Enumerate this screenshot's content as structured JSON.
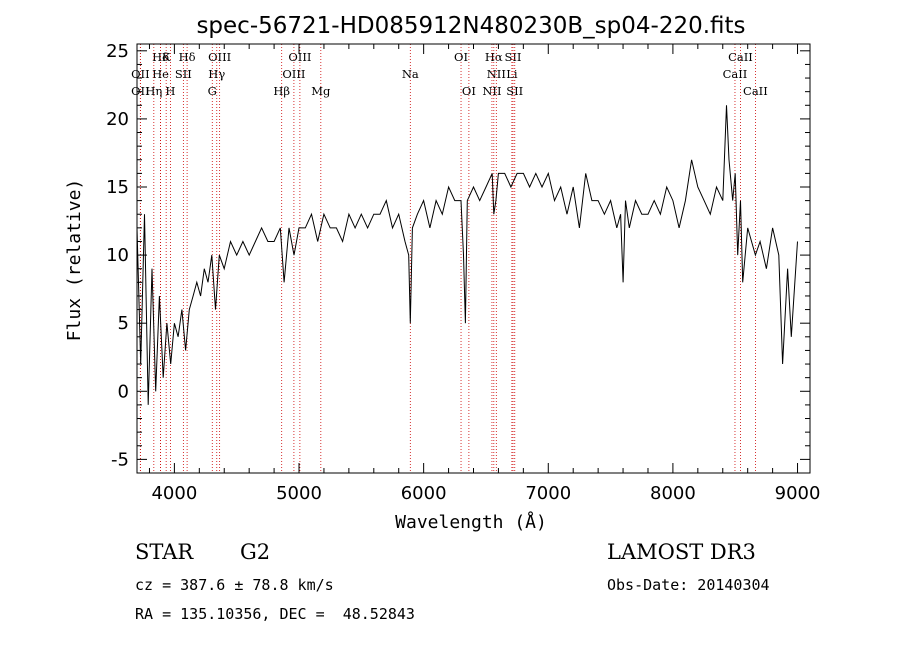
{
  "chart_data": {
    "type": "line",
    "title": "spec-56721-HD085912N480230B_sp04-220.fits",
    "xlabel": "Wavelength (Å)",
    "ylabel": "Flux (relative)",
    "xlim": [
      3700,
      9100
    ],
    "ylim": [
      -6,
      25.5
    ],
    "xticks": [
      4000,
      5000,
      6000,
      7000,
      8000,
      9000
    ],
    "yticks": [
      -5,
      0,
      5,
      10,
      15,
      20,
      25
    ],
    "series": [
      {
        "name": "flux",
        "x": [
          3700,
          3730,
          3760,
          3790,
          3820,
          3850,
          3880,
          3910,
          3940,
          3970,
          4000,
          4030,
          4060,
          4090,
          4120,
          4150,
          4180,
          4210,
          4240,
          4270,
          4300,
          4330,
          4360,
          4400,
          4450,
          4500,
          4550,
          4600,
          4650,
          4700,
          4750,
          4800,
          4850,
          4880,
          4920,
          4960,
          5000,
          5050,
          5100,
          5150,
          5200,
          5250,
          5300,
          5350,
          5400,
          5450,
          5500,
          5550,
          5600,
          5650,
          5700,
          5750,
          5800,
          5850,
          5880,
          5893,
          5910,
          5950,
          6000,
          6050,
          6100,
          6150,
          6200,
          6250,
          6300,
          6320,
          6335,
          6350,
          6400,
          6450,
          6500,
          6550,
          6563,
          6580,
          6600,
          6650,
          6700,
          6750,
          6800,
          6850,
          6900,
          6950,
          7000,
          7050,
          7100,
          7150,
          7200,
          7250,
          7300,
          7350,
          7400,
          7450,
          7500,
          7550,
          7580,
          7600,
          7620,
          7650,
          7700,
          7750,
          7800,
          7850,
          7900,
          7950,
          8000,
          8050,
          8100,
          8150,
          8200,
          8250,
          8300,
          8350,
          8400,
          8430,
          8450,
          8480,
          8500,
          8520,
          8542,
          8560,
          8600,
          8662,
          8700,
          8750,
          8800,
          8850,
          8880,
          8920,
          8950,
          9000
        ],
        "values": [
          12,
          2,
          13,
          -1,
          9,
          0,
          7,
          1,
          5,
          2,
          5,
          4,
          6,
          3,
          6,
          7,
          8,
          7,
          9,
          8,
          10,
          6,
          10,
          9,
          11,
          10,
          11,
          10,
          11,
          12,
          11,
          11,
          12,
          8,
          12,
          10,
          12,
          12,
          13,
          11,
          13,
          12,
          12,
          11,
          13,
          12,
          13,
          12,
          13,
          13,
          14,
          12,
          13,
          11,
          10,
          5,
          12,
          13,
          14,
          12,
          14,
          13,
          15,
          14,
          14,
          10,
          5,
          14,
          15,
          14,
          15,
          16,
          13,
          14,
          16,
          16,
          15,
          16,
          16,
          15,
          16,
          15,
          16,
          14,
          15,
          13,
          15,
          12,
          16,
          14,
          14,
          13,
          14,
          12,
          13,
          8,
          14,
          12,
          14,
          13,
          13,
          14,
          13,
          15,
          14,
          12,
          14,
          17,
          15,
          14,
          13,
          15,
          14,
          21,
          17,
          14,
          16,
          10,
          14,
          8,
          12,
          10,
          11,
          9,
          12,
          10,
          2,
          9,
          4,
          11
        ]
      }
    ],
    "spectral_lines": [
      {
        "label": "Hδ",
        "wavelength": 3889,
        "row": 0
      },
      {
        "label": "K",
        "wavelength": 3934,
        "row": 0
      },
      {
        "label": "Hδ",
        "wavelength": 4102,
        "row": 0
      },
      {
        "label": "OIII",
        "wavelength": 4363,
        "row": 0
      },
      {
        "label": "OIII",
        "wavelength": 5007,
        "row": 0
      },
      {
        "label": "OI",
        "wavelength": 6300,
        "row": 0
      },
      {
        "label": "Hα",
        "wavelength": 6563,
        "row": 0
      },
      {
        "label": "SII",
        "wavelength": 6717,
        "row": 0
      },
      {
        "label": "CaII",
        "wavelength": 8542,
        "row": 0
      },
      {
        "label": "OII",
        "wavelength": 3727,
        "row": 1
      },
      {
        "label": "He",
        "wavelength": 3889,
        "row": 1
      },
      {
        "label": "SII",
        "wavelength": 4072,
        "row": 1
      },
      {
        "label": "Hγ",
        "wavelength": 4340,
        "row": 1
      },
      {
        "label": "OIII",
        "wavelength": 4959,
        "row": 1
      },
      {
        "label": "Na",
        "wavelength": 5893,
        "row": 1
      },
      {
        "label": "NII",
        "wavelength": 6583,
        "row": 1
      },
      {
        "label": "Li",
        "wavelength": 6708,
        "row": 1
      },
      {
        "label": "CaII",
        "wavelength": 8498,
        "row": 1
      },
      {
        "label": "OII",
        "wavelength": 3727,
        "row": 2
      },
      {
        "label": "Hη",
        "wavelength": 3835,
        "row": 2
      },
      {
        "label": "H",
        "wavelength": 3968,
        "row": 2
      },
      {
        "label": "G",
        "wavelength": 4304,
        "row": 2
      },
      {
        "label": "Hβ",
        "wavelength": 4861,
        "row": 2
      },
      {
        "label": "Mg",
        "wavelength": 5175,
        "row": 2
      },
      {
        "label": "OI",
        "wavelength": 6363,
        "row": 2
      },
      {
        "label": "NII",
        "wavelength": 6548,
        "row": 2
      },
      {
        "label": "SII",
        "wavelength": 6731,
        "row": 2
      },
      {
        "label": "CaII",
        "wavelength": 8662,
        "row": 2
      }
    ],
    "line_color": "#000000",
    "marker_color": "#cc0000"
  },
  "info": {
    "object_class": "STAR",
    "subclass": "G2",
    "survey": "LAMOST DR3",
    "velocity": "cz = 387.6 ± 78.8 km/s",
    "obs_date": "Obs-Date: 20140304",
    "coords": "RA = 135.10356, DEC =  48.52843"
  }
}
